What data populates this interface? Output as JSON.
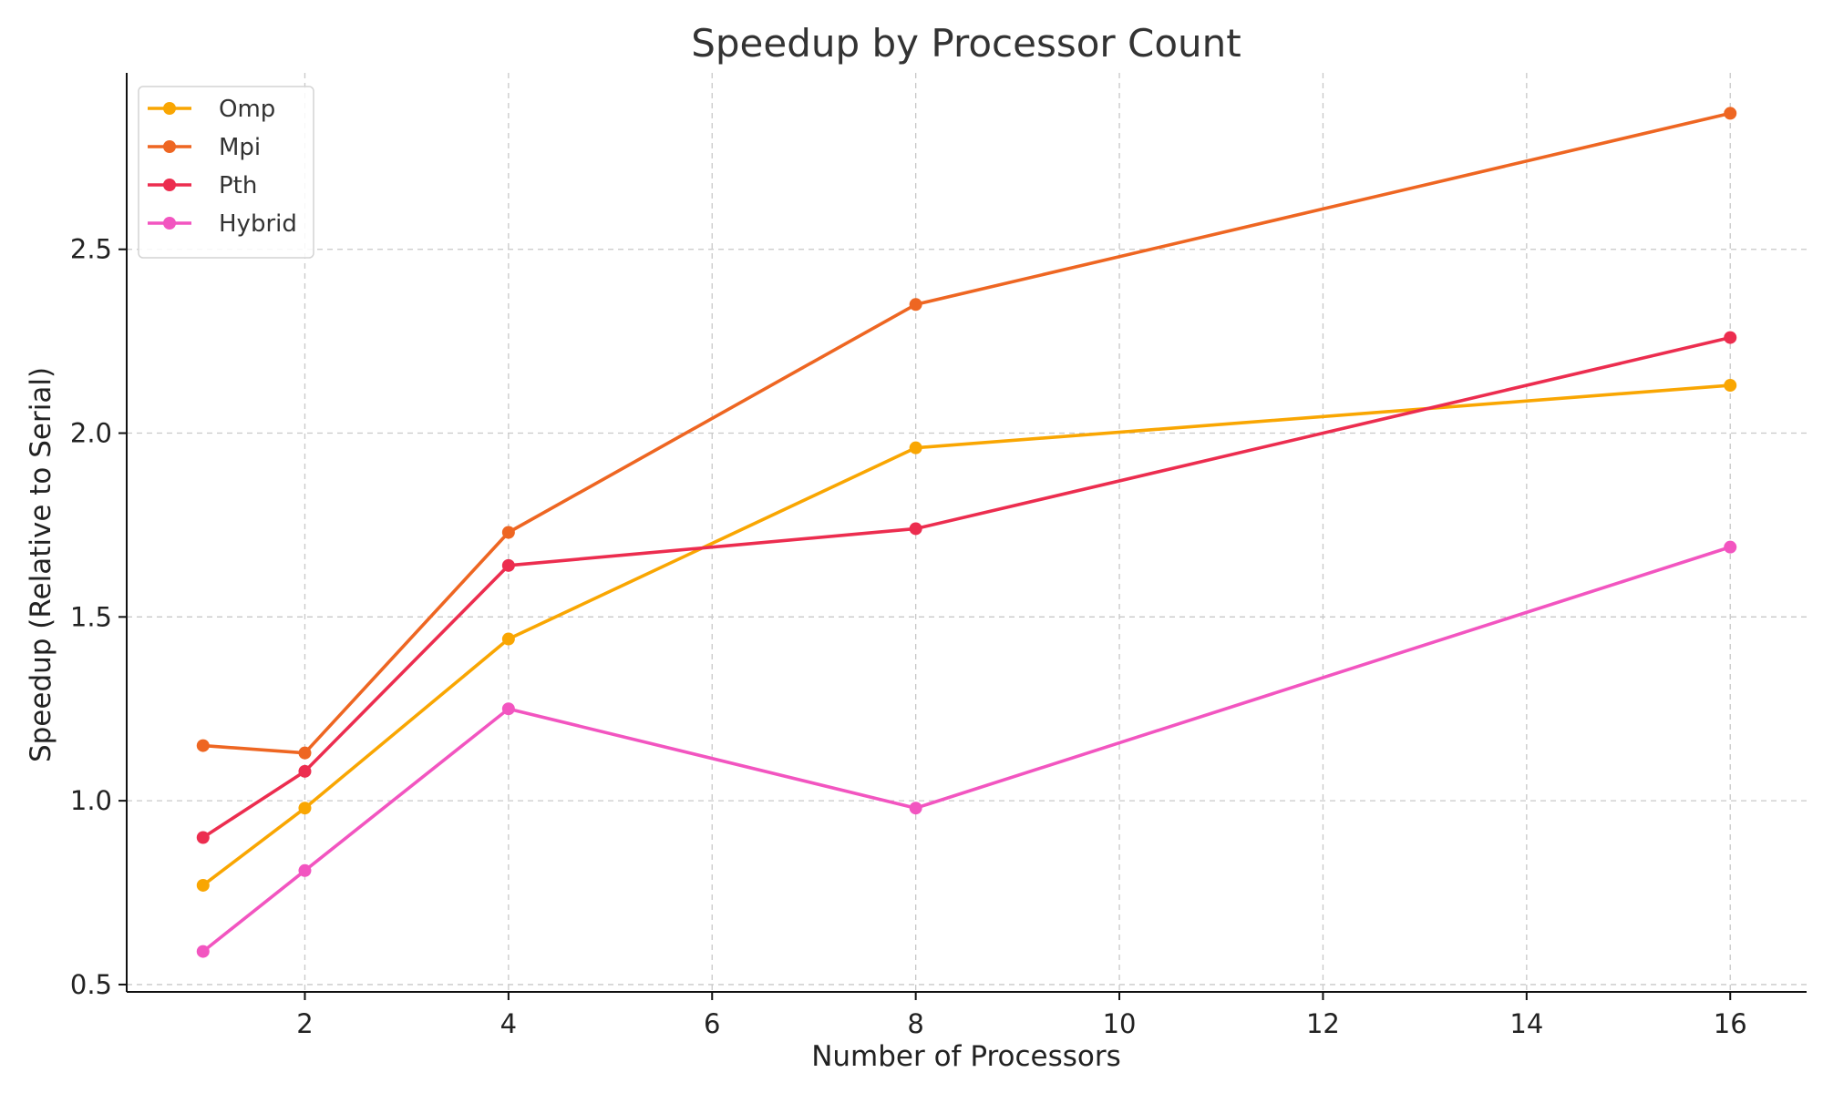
{
  "chart_data": {
    "type": "line",
    "title": "Speedup by Processor Count",
    "xlabel": "Number of Processors",
    "ylabel": "Speedup (Relative to Serial)",
    "x": [
      1,
      2,
      4,
      8,
      16
    ],
    "xlim": [
      0.25,
      16.75
    ],
    "ylim": [
      0.48,
      2.98
    ],
    "xticks": [
      2,
      4,
      6,
      8,
      10,
      12,
      14,
      16
    ],
    "yticks": [
      0.5,
      1.0,
      1.5,
      2.0,
      2.5
    ],
    "xtick_labels": [
      "2",
      "4",
      "6",
      "8",
      "10",
      "12",
      "14",
      "16"
    ],
    "ytick_labels": [
      "0.5",
      "1.0",
      "1.5",
      "2.0",
      "2.5"
    ],
    "grid": true,
    "legend": "top-left",
    "series": [
      {
        "name": "Omp",
        "color": "#F9A602",
        "values": [
          0.77,
          0.98,
          1.44,
          1.96,
          2.13
        ]
      },
      {
        "name": "Mpi",
        "color": "#EE6622",
        "values": [
          1.15,
          1.13,
          1.73,
          2.35,
          2.87
        ]
      },
      {
        "name": "Pth",
        "color": "#EC2D4F",
        "values": [
          0.9,
          1.08,
          1.64,
          1.74,
          2.26
        ]
      },
      {
        "name": "Hybrid",
        "color": "#F255C0",
        "values": [
          0.59,
          0.81,
          1.25,
          0.98,
          1.69
        ]
      }
    ]
  }
}
